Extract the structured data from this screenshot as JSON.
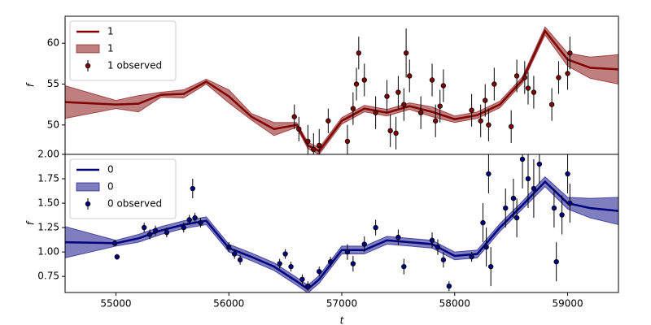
{
  "chart_data": [
    {
      "type": "line",
      "ylabel": "f",
      "legend": "upper left",
      "xlim": [
        54550,
        59450
      ],
      "ylim": [
        46.4,
        63.3
      ],
      "yticks": [
        50,
        55,
        60
      ],
      "x": [
        54550,
        55000,
        55200,
        55400,
        55600,
        55800,
        56000,
        56200,
        56400,
        56600,
        56700,
        56800,
        57000,
        57200,
        57400,
        57600,
        57800,
        58000,
        58200,
        58400,
        58600,
        58800,
        59000,
        59200,
        59450
      ],
      "series": [
        {
          "name": "1",
          "style": "line",
          "color": "#800000",
          "values": [
            52.8,
            52.5,
            52.6,
            53.7,
            53.8,
            55.3,
            53.5,
            51.0,
            49.5,
            50.0,
            47.5,
            46.8,
            50.5,
            52.0,
            51.5,
            52.3,
            51.6,
            50.7,
            51.2,
            52.5,
            55.5,
            61.5,
            58.0,
            57.0,
            56.8
          ]
        },
        {
          "name": "1",
          "style": "band",
          "color": "#800000",
          "lower": [
            50.8,
            52.0,
            51.6,
            53.4,
            53.3,
            55.0,
            52.7,
            50.6,
            48.7,
            49.7,
            47.1,
            46.4,
            50.1,
            51.6,
            51.1,
            51.9,
            51.0,
            50.3,
            50.8,
            52.1,
            55.1,
            61.0,
            57.2,
            55.7,
            55.0
          ],
          "upper": [
            54.8,
            53.0,
            53.6,
            54.0,
            54.3,
            55.6,
            54.3,
            51.4,
            50.3,
            50.3,
            47.9,
            47.2,
            50.9,
            52.4,
            51.9,
            52.7,
            52.2,
            51.1,
            51.6,
            52.9,
            55.9,
            62.0,
            58.8,
            58.3,
            58.6
          ]
        },
        {
          "name": "1 observed",
          "style": "errorbar",
          "color": "#800000",
          "x": [
            56580,
            56620,
            56700,
            56750,
            56800,
            56880,
            57050,
            57100,
            57130,
            57150,
            57200,
            57300,
            57400,
            57430,
            57480,
            57500,
            57550,
            57570,
            57600,
            57700,
            57800,
            57830,
            57870,
            57900,
            58150,
            58230,
            58270,
            58300,
            58350,
            58500,
            58550,
            58620,
            58650,
            58700,
            58860,
            58920,
            59000,
            59020
          ],
          "values": [
            51,
            49.5,
            48,
            47,
            47.5,
            50.5,
            48,
            52,
            55,
            58.8,
            55.5,
            51.5,
            53.5,
            49.3,
            49,
            54,
            52.5,
            58.8,
            56,
            51.5,
            55.5,
            50.5,
            52.3,
            54.8,
            51.8,
            50.5,
            53,
            50,
            55,
            49.8,
            56,
            55.8,
            54.5,
            54,
            52.5,
            55.8,
            56.3,
            58.8
          ],
          "errors": [
            1.5,
            1.5,
            2,
            2,
            2,
            1.5,
            2,
            2,
            2,
            2,
            2,
            2,
            2,
            2,
            2,
            2,
            2,
            3,
            2,
            2,
            2,
            2,
            2,
            2,
            2,
            2,
            2,
            2,
            2,
            2,
            2,
            2,
            2,
            2,
            2,
            2,
            2,
            2
          ]
        }
      ]
    },
    {
      "type": "line",
      "xlabel": "t",
      "ylabel": "f",
      "legend": "upper left",
      "xlim": [
        54550,
        59450
      ],
      "ylim": [
        0.585,
        2.0
      ],
      "xticks": [
        55000,
        56000,
        57000,
        58000,
        59000
      ],
      "yticks": [
        {
          "value": 0.75,
          "label": "0.75"
        },
        {
          "value": 1.0,
          "label": "1.00"
        },
        {
          "value": 1.25,
          "label": "1.25"
        },
        {
          "value": 1.5,
          "label": "1.50"
        },
        {
          "value": 1.75,
          "label": "1.75"
        },
        {
          "value": 2.0,
          "label": "2.00"
        }
      ],
      "x": [
        54550,
        55000,
        55200,
        55400,
        55600,
        55800,
        56000,
        56200,
        56400,
        56600,
        56700,
        56800,
        57000,
        57200,
        57400,
        57600,
        57800,
        58000,
        58200,
        58400,
        58600,
        58800,
        59000,
        59200,
        59450
      ],
      "series": [
        {
          "name": "0",
          "style": "line",
          "color": "#000080",
          "values": [
            1.1,
            1.09,
            1.14,
            1.22,
            1.28,
            1.32,
            1.04,
            0.95,
            0.85,
            0.7,
            0.62,
            0.72,
            1.02,
            1.02,
            1.12,
            1.1,
            1.08,
            0.96,
            0.98,
            1.25,
            1.48,
            1.72,
            1.5,
            1.45,
            1.42
          ]
        },
        {
          "name": "0",
          "style": "band",
          "color": "#000080",
          "lower": [
            0.94,
            1.06,
            1.1,
            1.18,
            1.24,
            1.28,
            1.0,
            0.91,
            0.81,
            0.66,
            0.58,
            0.68,
            0.98,
            0.98,
            1.08,
            1.06,
            1.04,
            0.92,
            0.94,
            1.21,
            1.44,
            1.67,
            1.44,
            1.35,
            1.28
          ],
          "upper": [
            1.26,
            1.12,
            1.18,
            1.26,
            1.32,
            1.36,
            1.08,
            0.99,
            0.89,
            0.74,
            0.66,
            0.76,
            1.06,
            1.06,
            1.16,
            1.14,
            1.12,
            1.0,
            1.02,
            1.29,
            1.52,
            1.77,
            1.56,
            1.55,
            1.56
          ]
        },
        {
          "name": "0 observed",
          "style": "errorbar",
          "color": "#000080",
          "x": [
            54990,
            55010,
            55250,
            55300,
            55350,
            55450,
            55600,
            55650,
            55680,
            55700,
            55750,
            56000,
            56050,
            56100,
            56450,
            56500,
            56550,
            56650,
            56700,
            56800,
            56900,
            57050,
            57100,
            57200,
            57300,
            57500,
            57550,
            57800,
            57850,
            57900,
            57950,
            58150,
            58250,
            58280,
            58300,
            58320,
            58450,
            58520,
            58550,
            58600,
            58650,
            58700,
            58750,
            58880,
            58900,
            58950,
            59000,
            59020
          ],
          "values": [
            1.09,
            0.95,
            1.25,
            1.18,
            1.22,
            1.2,
            1.25,
            1.33,
            1.65,
            1.35,
            1.3,
            1.05,
            0.98,
            0.92,
            0.88,
            0.98,
            0.85,
            0.72,
            0.65,
            0.8,
            0.9,
            1.0,
            0.88,
            1.08,
            1.25,
            1.15,
            0.85,
            1.12,
            1.05,
            0.92,
            0.65,
            0.95,
            1.3,
            1.05,
            1.8,
            0.85,
            1.45,
            1.55,
            1.35,
            1.95,
            1.75,
            1.65,
            1.9,
            1.45,
            0.9,
            1.38,
            1.8,
            1.5
          ],
          "errors": [
            0.03,
            0.03,
            0.05,
            0.05,
            0.05,
            0.05,
            0.05,
            0.05,
            0.1,
            0.05,
            0.05,
            0.05,
            0.05,
            0.05,
            0.05,
            0.05,
            0.05,
            0.05,
            0.05,
            0.05,
            0.05,
            0.08,
            0.08,
            0.08,
            0.08,
            0.08,
            0.08,
            0.08,
            0.08,
            0.08,
            0.05,
            0.05,
            0.2,
            0.2,
            0.2,
            0.2,
            0.2,
            0.2,
            0.2,
            0.3,
            0.3,
            0.3,
            0.2,
            0.2,
            0.2,
            0.2,
            0.2,
            0.2
          ]
        }
      ]
    }
  ]
}
